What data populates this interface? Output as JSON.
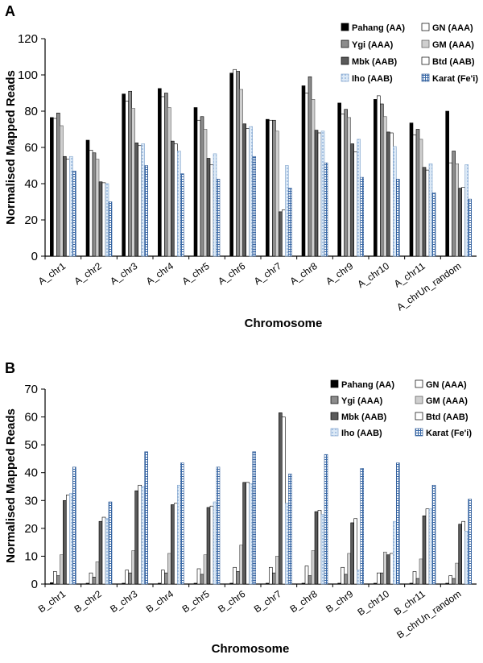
{
  "chart_data": [
    {
      "panel": "A",
      "type": "bar",
      "title": "",
      "xlabel": "Chromosome",
      "ylabel": "Normalised Mapped Reads",
      "ylim": [
        0,
        120
      ],
      "yticks": [
        0,
        20,
        40,
        60,
        80,
        100,
        120
      ],
      "grid": false,
      "legend_position": "top-right",
      "categories": [
        "A_chr1",
        "A_chr2",
        "A_chr3",
        "A_chr4",
        "A_chr5",
        "A_chr6",
        "A_chr7",
        "A_chr8",
        "A_chr9",
        "A_chr10",
        "A_chr11",
        "A_chrUn_random"
      ],
      "series": [
        {
          "name": "Pahang (AA)",
          "style": "black",
          "values": [
            76.5,
            64,
            89.5,
            92.5,
            82,
            101,
            75.5,
            94,
            84.5,
            86.5,
            73.5,
            80
          ]
        },
        {
          "name": "GN (AAA)",
          "style": "white",
          "values": [
            76,
            58.5,
            85.5,
            88,
            75,
            103,
            75,
            90,
            78.5,
            88.5,
            67,
            51.5
          ]
        },
        {
          "name": "Ygi (AAA)",
          "style": "gray",
          "values": [
            79,
            57,
            91,
            90,
            77,
            102,
            75,
            99,
            81,
            84,
            70,
            58
          ]
        },
        {
          "name": "GM (AAA)",
          "style": "lightgray",
          "values": [
            72,
            53.5,
            81.5,
            82,
            70,
            92,
            69,
            86.5,
            76.5,
            77,
            64.5,
            51
          ]
        },
        {
          "name": "Mbk (AAB)",
          "style": "darkgray",
          "values": [
            55,
            41,
            62.5,
            63.5,
            54,
            73,
            24.5,
            69.5,
            62,
            68.5,
            49,
            37.5
          ]
        },
        {
          "name": "Btd (AAB)",
          "style": "whitebar",
          "values": [
            53.5,
            40.5,
            61,
            62,
            50.5,
            70.5,
            25.5,
            68,
            57.5,
            68,
            47.5,
            38
          ]
        },
        {
          "name": "Iho (AAB)",
          "style": "lightblue",
          "values": [
            55,
            40,
            62,
            58,
            56.5,
            71.5,
            50,
            69,
            64.5,
            60.5,
            51,
            50.5
          ]
        },
        {
          "name": "Karat (Fe'i)",
          "style": "bluecheck",
          "values": [
            47,
            30,
            50,
            45.5,
            42.5,
            55,
            37.5,
            51.5,
            43.5,
            42.5,
            35,
            31.5
          ]
        }
      ]
    },
    {
      "panel": "B",
      "type": "bar",
      "title": "",
      "xlabel": "Chromosome",
      "ylabel": "Normalised Mapped Reads",
      "ylim": [
        0,
        70
      ],
      "yticks": [
        0,
        10,
        20,
        30,
        40,
        50,
        60,
        70
      ],
      "grid": false,
      "legend_position": "top-right",
      "categories": [
        "B_chr1",
        "B_chr2",
        "B_chr3",
        "B_chr4",
        "B_chr5",
        "B_chr6",
        "B_chr7",
        "B_chr8",
        "B_chr9",
        "B_chr10",
        "B_chr11",
        "B_chrUn_random"
      ],
      "series": [
        {
          "name": "Pahang (AA)",
          "style": "black",
          "values": [
            0.5,
            0.3,
            0.3,
            0.3,
            0.3,
            0.3,
            0.3,
            0.3,
            0.3,
            0.3,
            0.3,
            0.3
          ]
        },
        {
          "name": "GN (AAA)",
          "style": "white",
          "values": [
            4.5,
            4,
            5,
            5,
            5.5,
            6,
            6,
            6.5,
            6,
            4,
            4.5,
            3
          ]
        },
        {
          "name": "Ygi (AAA)",
          "style": "gray",
          "values": [
            3,
            2.5,
            4,
            4,
            3.5,
            4.5,
            4,
            3,
            3.5,
            4,
            2,
            2
          ]
        },
        {
          "name": "GM (AAA)",
          "style": "lightgray",
          "values": [
            10.5,
            8,
            12,
            11,
            10.5,
            14,
            10,
            12,
            11,
            11.5,
            9,
            7.5
          ]
        },
        {
          "name": "Mbk (AAB)",
          "style": "darkgray",
          "values": [
            30,
            22.5,
            33.5,
            28.5,
            27.5,
            36.5,
            61.5,
            26,
            22,
            10.5,
            24.5,
            21.5
          ]
        },
        {
          "name": "Btd (AAB)",
          "style": "whitebar",
          "values": [
            32,
            24,
            35.5,
            29,
            28,
            36.5,
            60,
            26.5,
            23.5,
            11,
            27,
            22.5
          ]
        },
        {
          "name": "Iho (AAB)",
          "style": "lightblue",
          "values": [
            32.5,
            23.5,
            35,
            35.5,
            29.5,
            36,
            29,
            25,
            5,
            22.5,
            27,
            19
          ]
        },
        {
          "name": "Karat (Fe'i)",
          "style": "bluecheck",
          "values": [
            42,
            29.5,
            47.5,
            43.5,
            42,
            47.5,
            39.5,
            46.5,
            41.5,
            43.5,
            35.5,
            30.5
          ]
        }
      ]
    }
  ],
  "panels": {
    "a": {
      "letter": "A",
      "xlabel": "Chromosome",
      "ylabel": "Normalised Mapped Reads"
    },
    "b": {
      "letter": "B",
      "xlabel": "Chromosome",
      "ylabel": "Normalised Mapped Reads"
    }
  }
}
